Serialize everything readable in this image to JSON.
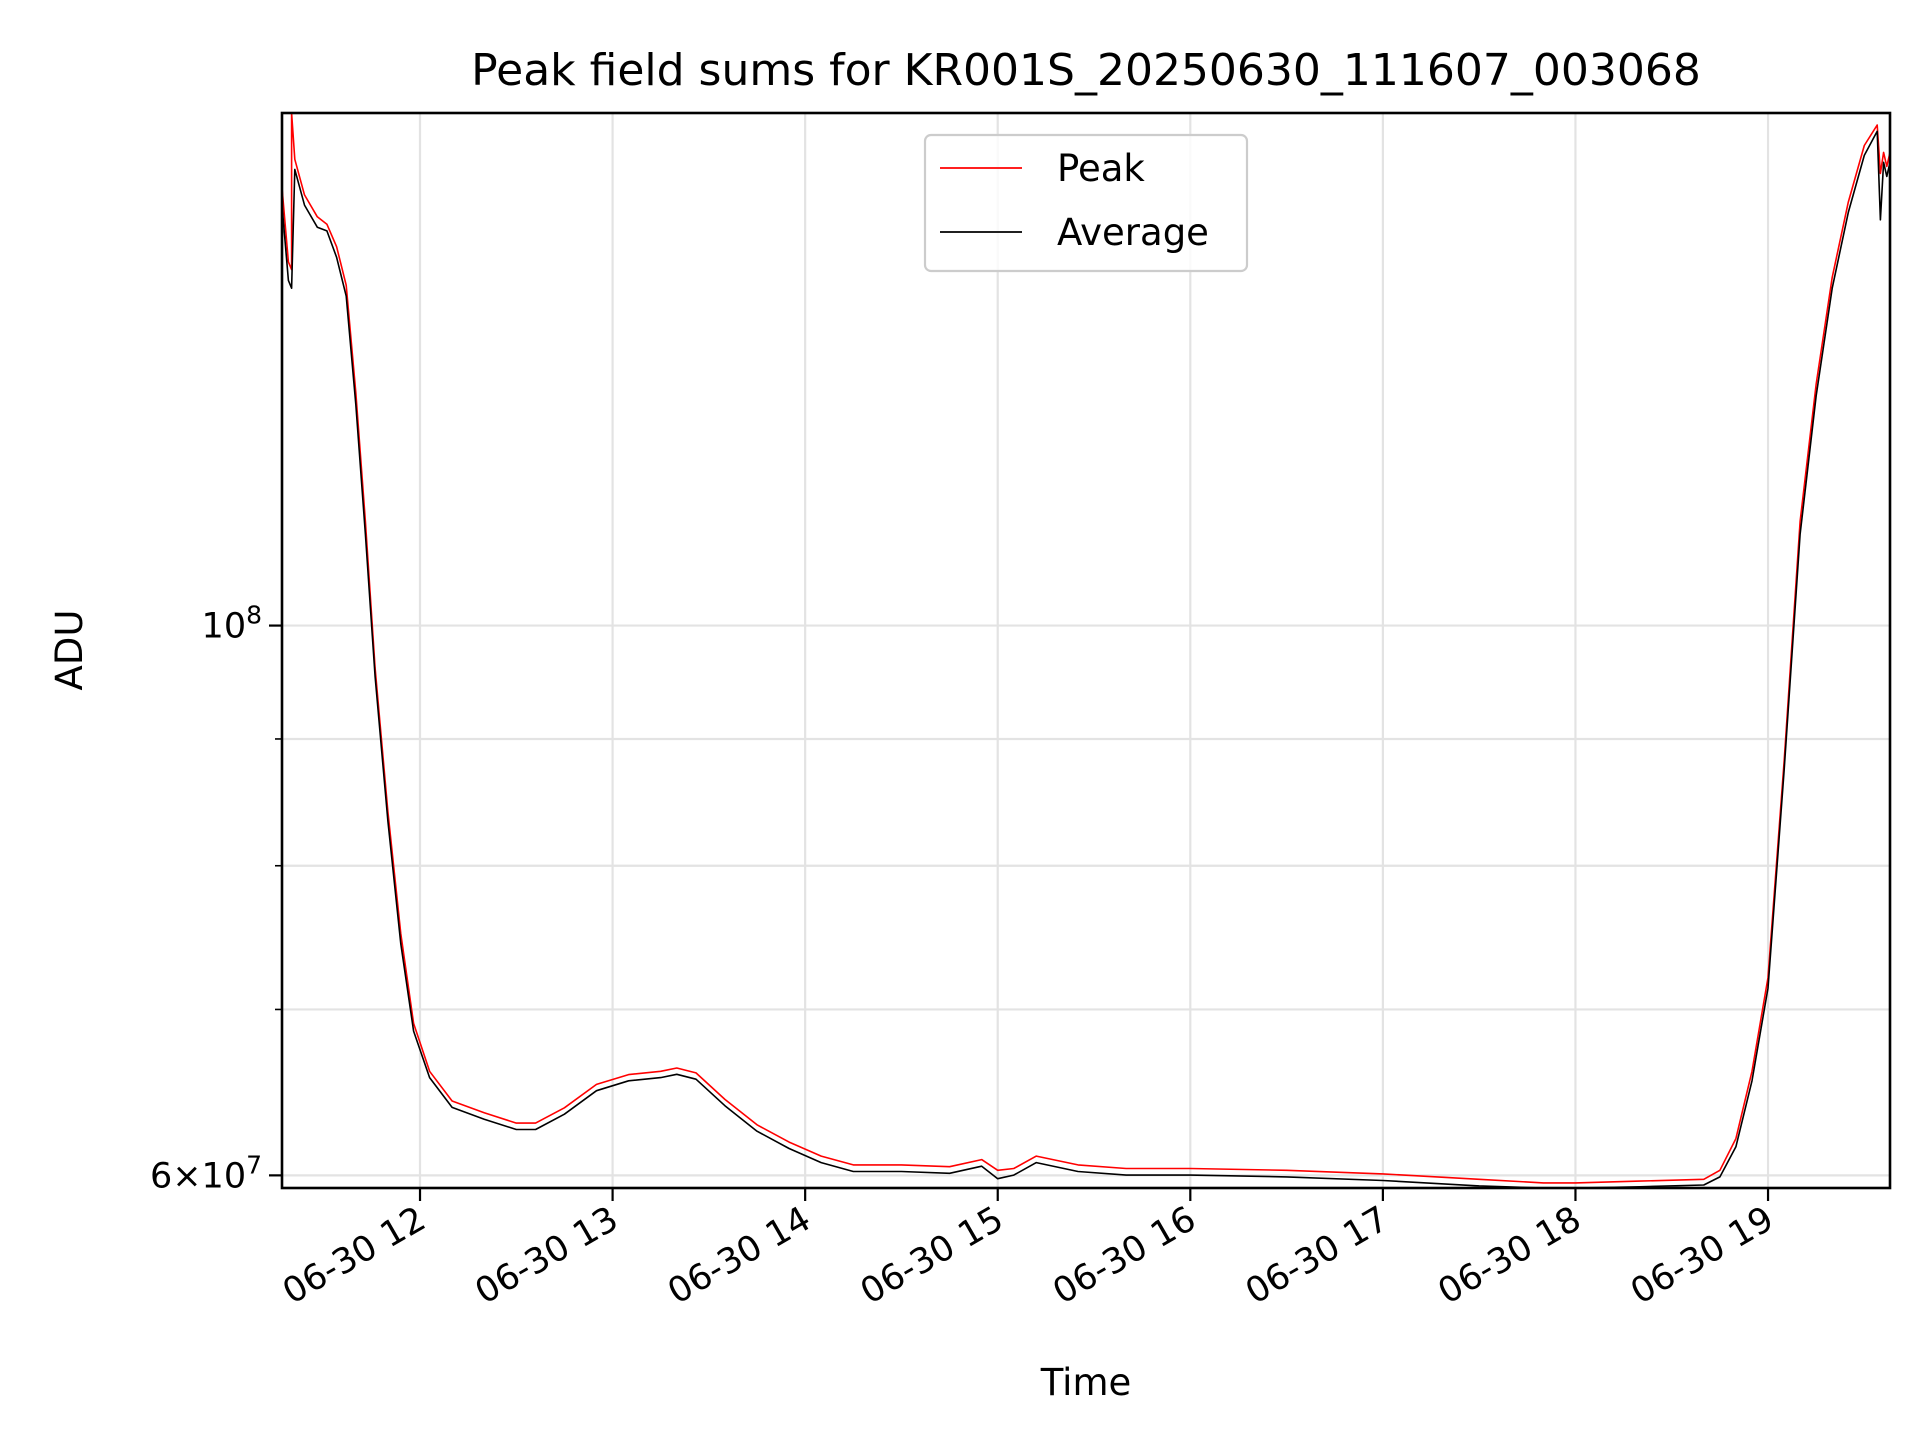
{
  "chart_data": {
    "type": "line",
    "title": "Peak field sums for KR001S_20250630_111607_003068",
    "xlabel": "Time",
    "ylabel": "ADU",
    "y_scale": "log",
    "ylim": [
      59300000,
      161000000
    ],
    "xlim": [
      "2025-06-30 11:17",
      "2025-06-30 19:38"
    ],
    "x_ticks": [
      {
        "t": "2025-06-30 12:00",
        "label": "06-30 12"
      },
      {
        "t": "2025-06-30 13:00",
        "label": "06-30 13"
      },
      {
        "t": "2025-06-30 14:00",
        "label": "06-30 14"
      },
      {
        "t": "2025-06-30 15:00",
        "label": "06-30 15"
      },
      {
        "t": "2025-06-30 16:00",
        "label": "06-30 16"
      },
      {
        "t": "2025-06-30 17:00",
        "label": "06-30 17"
      },
      {
        "t": "2025-06-30 18:00",
        "label": "06-30 18"
      },
      {
        "t": "2025-06-30 19:00",
        "label": "06-30 19"
      }
    ],
    "y_major_ticks": [
      {
        "value": 100000000,
        "base": "10",
        "exp": "8",
        "mant": ""
      },
      {
        "value": 60000000,
        "base": "10",
        "exp": "7",
        "mant": "6×"
      }
    ],
    "y_minor_ticks": [
      70000000,
      80000000,
      90000000
    ],
    "grid": true,
    "legend_position": "top-center",
    "series": [
      {
        "name": "Peak",
        "color": "#ff0000",
        "points": [
          [
            "2025-06-30 11:17",
            150000000
          ],
          [
            "2025-06-30 11:19",
            140000000
          ],
          [
            "2025-06-30 11:20",
            139000000
          ],
          [
            "2025-06-30 11:20",
            161000000
          ],
          [
            "2025-06-30 11:21",
            154000000
          ],
          [
            "2025-06-30 11:24",
            149000000
          ],
          [
            "2025-06-30 11:28",
            146000000
          ],
          [
            "2025-06-30 11:31",
            145000000
          ],
          [
            "2025-06-30 11:34",
            142000000
          ],
          [
            "2025-06-30 11:37",
            137000000
          ],
          [
            "2025-06-30 11:40",
            124000000
          ],
          [
            "2025-06-30 11:43",
            110000000
          ],
          [
            "2025-06-30 11:46",
            96000000
          ],
          [
            "2025-06-30 11:50",
            84000000
          ],
          [
            "2025-06-30 11:54",
            75000000
          ],
          [
            "2025-06-30 11:58",
            69000000
          ],
          [
            "2025-06-30 12:03",
            66000000
          ],
          [
            "2025-06-30 12:10",
            64200000
          ],
          [
            "2025-06-30 12:20",
            63500000
          ],
          [
            "2025-06-30 12:30",
            62900000
          ],
          [
            "2025-06-30 12:36",
            62900000
          ],
          [
            "2025-06-30 12:45",
            63800000
          ],
          [
            "2025-06-30 12:55",
            65200000
          ],
          [
            "2025-06-30 13:05",
            65800000
          ],
          [
            "2025-06-30 13:15",
            66000000
          ],
          [
            "2025-06-30 13:20",
            66200000
          ],
          [
            "2025-06-30 13:26",
            65900000
          ],
          [
            "2025-06-30 13:35",
            64300000
          ],
          [
            "2025-06-30 13:45",
            62800000
          ],
          [
            "2025-06-30 13:55",
            61800000
          ],
          [
            "2025-06-30 14:05",
            61000000
          ],
          [
            "2025-06-30 14:15",
            60500000
          ],
          [
            "2025-06-30 14:30",
            60500000
          ],
          [
            "2025-06-30 14:45",
            60400000
          ],
          [
            "2025-06-30 14:55",
            60800000
          ],
          [
            "2025-06-30 15:00",
            60200000
          ],
          [
            "2025-06-30 15:05",
            60300000
          ],
          [
            "2025-06-30 15:12",
            61000000
          ],
          [
            "2025-06-30 15:25",
            60500000
          ],
          [
            "2025-06-30 15:40",
            60300000
          ],
          [
            "2025-06-30 16:00",
            60300000
          ],
          [
            "2025-06-30 16:30",
            60200000
          ],
          [
            "2025-06-30 17:00",
            60000000
          ],
          [
            "2025-06-30 17:30",
            59700000
          ],
          [
            "2025-06-30 17:50",
            59500000
          ],
          [
            "2025-06-30 18:00",
            59500000
          ],
          [
            "2025-06-30 18:20",
            59600000
          ],
          [
            "2025-06-30 18:40",
            59700000
          ],
          [
            "2025-06-30 18:45",
            60200000
          ],
          [
            "2025-06-30 18:50",
            62000000
          ],
          [
            "2025-06-30 18:55",
            66000000
          ],
          [
            "2025-06-30 19:00",
            72000000
          ],
          [
            "2025-06-30 19:05",
            88000000
          ],
          [
            "2025-06-30 19:10",
            110000000
          ],
          [
            "2025-06-30 19:15",
            125000000
          ],
          [
            "2025-06-30 19:20",
            138000000
          ],
          [
            "2025-06-30 19:25",
            148000000
          ],
          [
            "2025-06-30 19:30",
            156000000
          ],
          [
            "2025-06-30 19:34",
            159000000
          ],
          [
            "2025-06-30 19:35",
            152000000
          ],
          [
            "2025-06-30 19:36",
            155000000
          ],
          [
            "2025-06-30 19:37",
            153000000
          ],
          [
            "2025-06-30 19:38",
            155000000
          ]
        ]
      },
      {
        "name": "Average",
        "color": "#000000",
        "points": [
          [
            "2025-06-30 11:17",
            148000000
          ],
          [
            "2025-06-30 11:19",
            138000000
          ],
          [
            "2025-06-30 11:20",
            137000000
          ],
          [
            "2025-06-30 11:21",
            153000000
          ],
          [
            "2025-06-30 11:24",
            148000000
          ],
          [
            "2025-06-30 11:28",
            145000000
          ],
          [
            "2025-06-30 11:31",
            144500000
          ],
          [
            "2025-06-30 11:34",
            141000000
          ],
          [
            "2025-06-30 11:37",
            136000000
          ],
          [
            "2025-06-30 11:40",
            123000000
          ],
          [
            "2025-06-30 11:43",
            109000000
          ],
          [
            "2025-06-30 11:46",
            95500000
          ],
          [
            "2025-06-30 11:50",
            83500000
          ],
          [
            "2025-06-30 11:54",
            74500000
          ],
          [
            "2025-06-30 11:58",
            68700000
          ],
          [
            "2025-06-30 12:03",
            65800000
          ],
          [
            "2025-06-30 12:10",
            64000000
          ],
          [
            "2025-06-30 12:20",
            63300000
          ],
          [
            "2025-06-30 12:30",
            62700000
          ],
          [
            "2025-06-30 12:36",
            62700000
          ],
          [
            "2025-06-30 12:45",
            63600000
          ],
          [
            "2025-06-30 12:55",
            65000000
          ],
          [
            "2025-06-30 13:05",
            65600000
          ],
          [
            "2025-06-30 13:15",
            65800000
          ],
          [
            "2025-06-30 13:20",
            66000000
          ],
          [
            "2025-06-30 13:26",
            65700000
          ],
          [
            "2025-06-30 13:35",
            64100000
          ],
          [
            "2025-06-30 13:45",
            62600000
          ],
          [
            "2025-06-30 13:55",
            61600000
          ],
          [
            "2025-06-30 14:05",
            60800000
          ],
          [
            "2025-06-30 14:15",
            60300000
          ],
          [
            "2025-06-30 14:30",
            60300000
          ],
          [
            "2025-06-30 14:45",
            60200000
          ],
          [
            "2025-06-30 14:55",
            60600000
          ],
          [
            "2025-06-30 15:00",
            59900000
          ],
          [
            "2025-06-30 15:05",
            60100000
          ],
          [
            "2025-06-30 15:12",
            60800000
          ],
          [
            "2025-06-30 15:25",
            60300000
          ],
          [
            "2025-06-30 15:40",
            60100000
          ],
          [
            "2025-06-30 16:00",
            60100000
          ],
          [
            "2025-06-30 16:30",
            60000000
          ],
          [
            "2025-06-30 17:00",
            59800000
          ],
          [
            "2025-06-30 17:30",
            59500000
          ],
          [
            "2025-06-30 17:50",
            59350000
          ],
          [
            "2025-06-30 18:00",
            59350000
          ],
          [
            "2025-06-30 18:20",
            59450000
          ],
          [
            "2025-06-30 18:40",
            59550000
          ],
          [
            "2025-06-30 18:45",
            60000000
          ],
          [
            "2025-06-30 18:50",
            61700000
          ],
          [
            "2025-06-30 18:55",
            65600000
          ],
          [
            "2025-06-30 19:00",
            71500000
          ],
          [
            "2025-06-30 19:05",
            87500000
          ],
          [
            "2025-06-30 19:10",
            109000000
          ],
          [
            "2025-06-30 19:15",
            124000000
          ],
          [
            "2025-06-30 19:20",
            137000000
          ],
          [
            "2025-06-30 19:25",
            147000000
          ],
          [
            "2025-06-30 19:30",
            155000000
          ],
          [
            "2025-06-30 19:34",
            158500000
          ],
          [
            "2025-06-30 19:35",
            146000000
          ],
          [
            "2025-06-30 19:36",
            154000000
          ],
          [
            "2025-06-30 19:37",
            152000000
          ],
          [
            "2025-06-30 19:38",
            154000000
          ]
        ]
      }
    ]
  }
}
